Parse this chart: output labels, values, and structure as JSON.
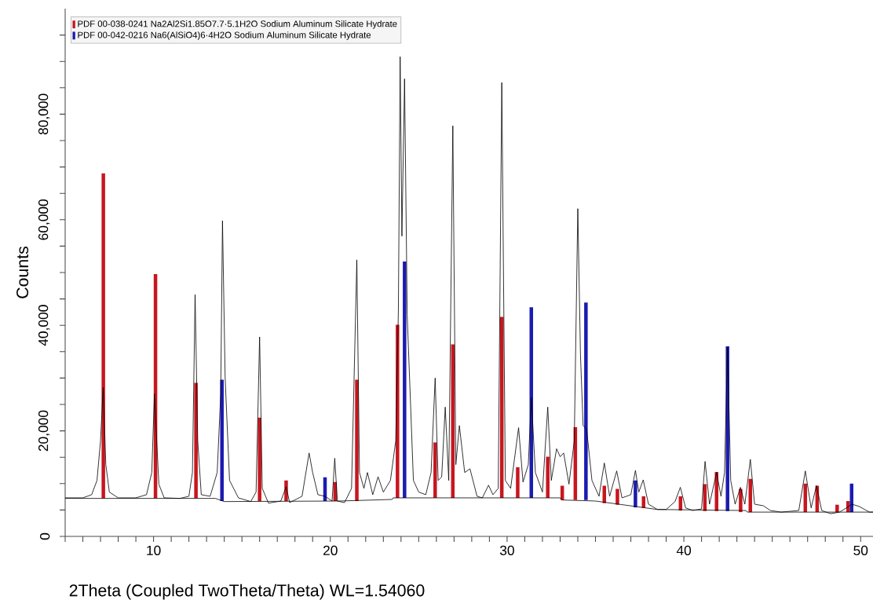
{
  "chart_data": {
    "type": "line",
    "xlabel": "2Theta (Coupled TwoTheta/Theta) WL=1.54060",
    "ylabel": "Counts",
    "xlim": [
      5,
      50.7
    ],
    "ylim": [
      0,
      100000
    ],
    "xticks": [
      {
        "value": 5,
        "label": null
      },
      {
        "value": 6,
        "label": null
      },
      {
        "value": 7,
        "label": null
      },
      {
        "value": 8,
        "label": null
      },
      {
        "value": 9,
        "label": null
      },
      10,
      {
        "value": 11,
        "label": null
      },
      {
        "value": 12,
        "label": null
      },
      {
        "value": 13,
        "label": null
      },
      {
        "value": 14,
        "label": null
      },
      {
        "value": 15,
        "label": null
      },
      {
        "value": 16,
        "label": null
      },
      {
        "value": 17,
        "label": null
      },
      {
        "value": 18,
        "label": null
      },
      {
        "value": 19,
        "label": null
      },
      20,
      {
        "value": 21,
        "label": null
      },
      {
        "value": 22,
        "label": null
      },
      {
        "value": 23,
        "label": null
      },
      {
        "value": 24,
        "label": null
      },
      {
        "value": 25,
        "label": null
      },
      {
        "value": 26,
        "label": null
      },
      {
        "value": 27,
        "label": null
      },
      {
        "value": 28,
        "label": null
      },
      {
        "value": 29,
        "label": null
      },
      30,
      {
        "value": 31,
        "label": null
      },
      {
        "value": 32,
        "label": null
      },
      {
        "value": 33,
        "label": null
      },
      {
        "value": 34,
        "label": null
      },
      {
        "value": 35,
        "label": null
      },
      {
        "value": 36,
        "label": null
      },
      {
        "value": 37,
        "label": null
      },
      {
        "value": 38,
        "label": null
      },
      {
        "value": 39,
        "label": null
      },
      40,
      {
        "value": 41,
        "label": null
      },
      {
        "value": 42,
        "label": null
      },
      {
        "value": 43,
        "label": null
      },
      {
        "value": 44,
        "label": null
      },
      {
        "value": 45,
        "label": null
      },
      {
        "value": 46,
        "label": null
      },
      {
        "value": 47,
        "label": null
      },
      {
        "value": 48,
        "label": null
      },
      {
        "value": 49,
        "label": null
      },
      50
    ],
    "yticks": [
      0,
      {
        "value": 5000,
        "label": null
      },
      {
        "value": 10000,
        "label": null
      },
      {
        "value": 15000,
        "label": null
      },
      {
        "value": 20000,
        "label": "20,000"
      },
      {
        "value": 25000,
        "label": null
      },
      {
        "value": 30000,
        "label": null
      },
      {
        "value": 35000,
        "label": null
      },
      {
        "value": 40000,
        "label": "40,000"
      },
      {
        "value": 45000,
        "label": null
      },
      {
        "value": 50000,
        "label": null
      },
      {
        "value": 55000,
        "label": null
      },
      {
        "value": 60000,
        "label": "60,000"
      },
      {
        "value": 65000,
        "label": null
      },
      {
        "value": 70000,
        "label": null
      },
      {
        "value": 75000,
        "label": null
      },
      {
        "value": 80000,
        "label": "80,000"
      },
      {
        "value": 85000,
        "label": null
      },
      {
        "value": 90000,
        "label": null
      },
      {
        "value": 95000,
        "label": null
      }
    ],
    "legend": "top left",
    "series": [
      {
        "color": "#000000",
        "x": [
          5.0,
          6.0,
          6.5,
          6.8,
          7.0,
          7.15,
          7.3,
          7.5,
          8.0,
          9.0,
          9.6,
          9.9,
          10.05,
          10.3,
          10.6,
          11.5,
          12.0,
          12.2,
          12.35,
          12.5,
          12.7,
          13.2,
          13.6,
          13.8,
          13.9,
          14.05,
          14.3,
          14.8,
          15.5,
          15.8,
          16.0,
          16.15,
          16.5,
          17.2,
          17.5,
          17.7,
          18.4,
          18.8,
          19.0,
          19.3,
          19.7,
          20.1,
          20.25,
          20.4,
          20.8,
          21.2,
          21.5,
          21.65,
          21.9,
          22.1,
          22.4,
          22.7,
          23.0,
          23.4,
          23.7,
          23.85,
          23.95,
          24.05,
          24.2,
          24.35,
          24.7,
          25.0,
          25.4,
          25.7,
          25.93,
          26.1,
          26.3,
          26.5,
          26.7,
          26.93,
          27.1,
          27.3,
          27.6,
          27.9,
          28.3,
          28.6,
          28.95,
          29.2,
          29.5,
          29.7,
          29.9,
          30.2,
          30.65,
          30.9,
          31.2,
          31.37,
          31.6,
          32.0,
          32.3,
          32.5,
          32.8,
          33.0,
          33.2,
          33.5,
          33.8,
          34.0,
          34.15,
          34.3,
          34.5,
          34.8,
          35.2,
          35.5,
          35.8,
          36.2,
          36.5,
          37.0,
          37.26,
          37.45,
          37.7,
          38.0,
          38.5,
          39.0,
          39.5,
          39.8,
          40.1,
          40.5,
          41.0,
          41.2,
          41.45,
          41.85,
          42.1,
          42.3,
          42.47,
          42.65,
          42.9,
          43.2,
          43.45,
          43.76,
          44.0,
          44.5,
          44.9,
          45.5,
          46.5,
          46.87,
          47.2,
          47.5,
          47.8,
          48.3,
          48.8,
          49.2,
          49.5,
          49.9,
          50.5,
          50.7
        ],
        "values": [
          7300,
          7300,
          7900,
          10600,
          18100,
          28200,
          13600,
          8400,
          7300,
          7300,
          7900,
          12100,
          27000,
          9900,
          7300,
          7200,
          7600,
          12100,
          45800,
          18100,
          7900,
          7600,
          12100,
          27000,
          59800,
          30000,
          10600,
          7300,
          6600,
          8400,
          37800,
          9100,
          6300,
          6700,
          9400,
          6400,
          7600,
          15800,
          12100,
          7900,
          7600,
          6700,
          14800,
          6700,
          6400,
          9100,
          52400,
          12100,
          9100,
          12100,
          7900,
          11300,
          8400,
          10600,
          18100,
          42700,
          90900,
          56900,
          86700,
          41900,
          10600,
          8400,
          7900,
          12100,
          30000,
          10600,
          11300,
          24500,
          10600,
          77800,
          13600,
          21000,
          12100,
          12800,
          7600,
          7300,
          9700,
          7900,
          9100,
          86000,
          10600,
          9100,
          20600,
          10300,
          13600,
          26300,
          12100,
          8400,
          24500,
          10600,
          16600,
          15100,
          15800,
          9900,
          18100,
          62100,
          34500,
          21000,
          20300,
          10600,
          7600,
          13900,
          7600,
          12400,
          7300,
          7900,
          12500,
          8400,
          10700,
          6100,
          5100,
          5100,
          6600,
          9300,
          5400,
          4900,
          5200,
          14200,
          6100,
          12100,
          7600,
          12100,
          35800,
          10600,
          6100,
          9300,
          6100,
          14600,
          6100,
          5800,
          4900,
          4600,
          4900,
          12400,
          5400,
          9600,
          4900,
          4300,
          4600,
          5400,
          6100,
          5700,
          4600,
          4600
        ]
      },
      {
        "color": "#000000",
        "x": [
          5,
          13.5,
          14.0,
          20.5,
          23.5,
          23.55,
          33.0,
          33.1,
          35.0,
          38.5,
          43.5,
          43.6,
          50.7
        ],
        "values": [
          7200,
          7200,
          6600,
          6700,
          7000,
          7300,
          7300,
          6900,
          6700,
          5100,
          4900,
          4600,
          4600
        ]
      },
      {
        "type": "bar",
        "name": "PDF 00-038-0241 Na2Al2Si1.85O7.7·5.1H2O Sodium Aluminum Silicate Hydrate",
        "color": "#c8161e",
        "x": [
          7.16,
          10.11,
          12.4,
          16.0,
          17.5,
          20.27,
          21.5,
          23.8,
          25.93,
          26.93,
          29.7,
          30.6,
          32.3,
          33.12,
          33.86,
          35.5,
          36.24,
          37.72,
          39.81,
          41.19,
          41.85,
          43.21,
          43.76,
          46.87,
          47.54,
          48.67,
          49.29
        ],
        "base": [
          7200,
          7200,
          7200,
          6700,
          6700,
          6700,
          6700,
          7300,
          7300,
          7300,
          7300,
          7300,
          7300,
          6900,
          6900,
          6300,
          6000,
          5400,
          4900,
          4800,
          4800,
          4600,
          4600,
          4600,
          4600,
          4600,
          4600
        ],
        "values": [
          61600,
          42500,
          21900,
          15800,
          3900,
          3600,
          23000,
          32800,
          10500,
          29100,
          34300,
          5800,
          7800,
          2700,
          13800,
          3300,
          3000,
          2200,
          2700,
          5100,
          7400,
          4400,
          6300,
          5400,
          5000,
          1400,
          2100
        ]
      },
      {
        "type": "bar",
        "name": "PDF 00-042-0216 Na6(AlSiO4)6·4H2O Sodium Aluminum Silicate Hydrate",
        "color": "#1b1bb0",
        "x": [
          13.87,
          19.7,
          24.2,
          31.37,
          34.46,
          37.26,
          42.47,
          49.49
        ],
        "base": [
          6700,
          6700,
          7300,
          7300,
          6900,
          5500,
          4800,
          4600
        ],
        "values": [
          23000,
          4500,
          44800,
          36100,
          37400,
          5100,
          31200,
          5400
        ]
      }
    ]
  }
}
